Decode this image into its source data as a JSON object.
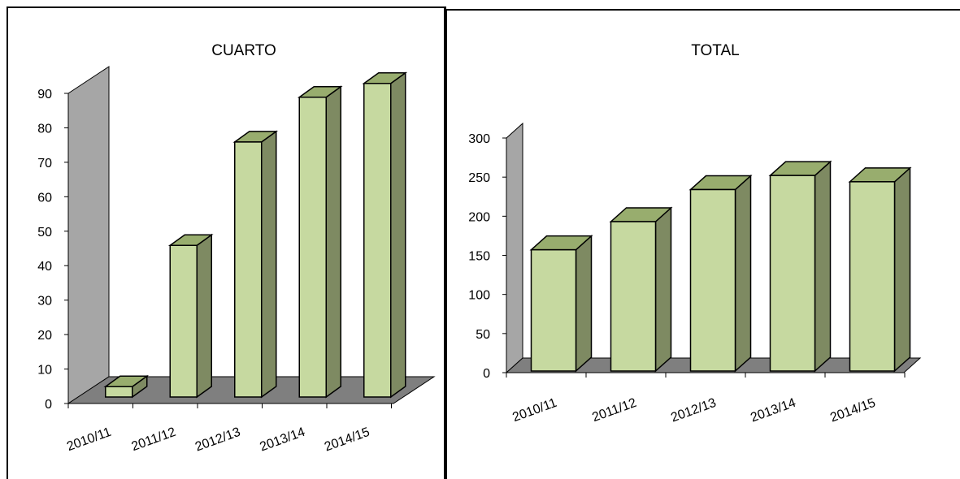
{
  "chart_data": [
    {
      "type": "bar",
      "title": "CUARTO",
      "categories": [
        "2010/11",
        "2011/12",
        "2012/13",
        "2013/14",
        "2014/15"
      ],
      "values": [
        3,
        44,
        74,
        87,
        91
      ],
      "ylim": [
        0,
        90
      ],
      "yticks": [
        "0",
        "10",
        "20",
        "30",
        "40",
        "50",
        "60",
        "70",
        "80",
        "90"
      ],
      "xlabel": "",
      "ylabel": "",
      "grid": false,
      "legend": "none",
      "colors": {
        "front": "#c6d9a0",
        "side": "#7e8a62",
        "top": "#98ad6e",
        "wall": "#a6a6a6",
        "floor": "#7f7f7f"
      }
    },
    {
      "type": "bar",
      "title": "TOTAL",
      "categories": [
        "2010/11",
        "2011/12",
        "2012/13",
        "2013/14",
        "2014/15"
      ],
      "values": [
        155,
        191,
        232,
        250,
        242
      ],
      "ylim": [
        0,
        300
      ],
      "yticks": [
        "0",
        "50",
        "100",
        "150",
        "200",
        "250",
        "300"
      ],
      "xlabel": "",
      "ylabel": "",
      "grid": false,
      "legend": "none",
      "colors": {
        "front": "#c6d9a0",
        "side": "#7e8a62",
        "top": "#98ad6e",
        "wall": "#a6a6a6",
        "floor": "#7f7f7f"
      }
    }
  ]
}
